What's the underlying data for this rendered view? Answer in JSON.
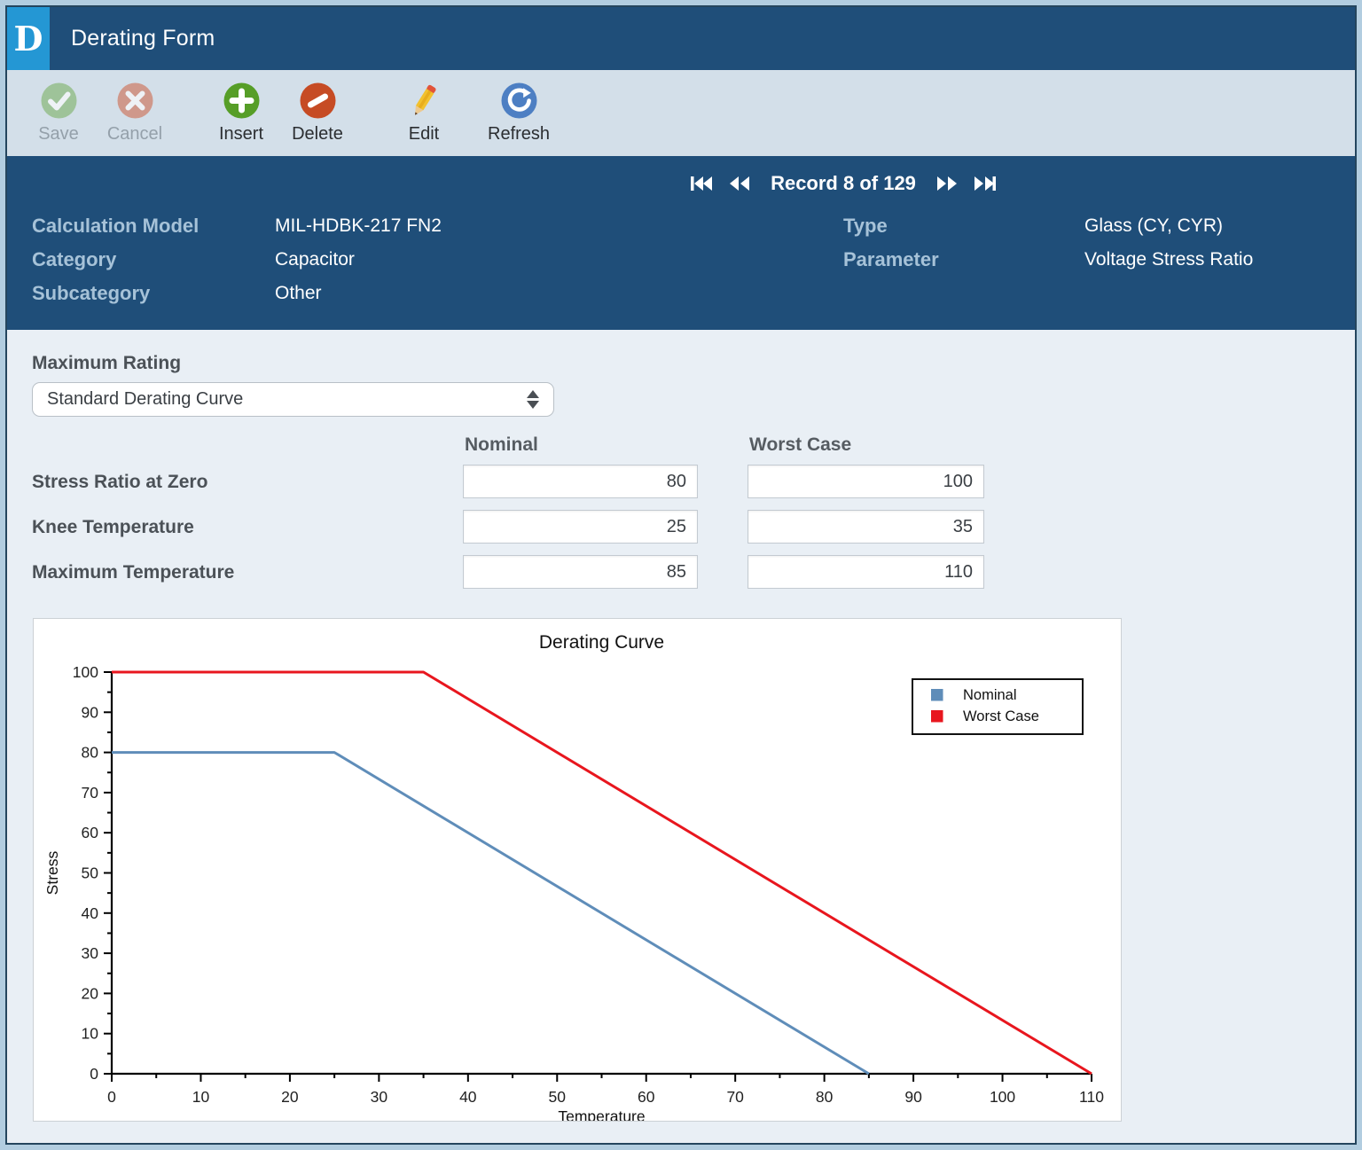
{
  "window": {
    "logo": "D",
    "title": "Derating Form"
  },
  "toolbar": {
    "buttons": [
      {
        "label": "Save",
        "icon": "save-check-icon",
        "enabled": false
      },
      {
        "label": "Cancel",
        "icon": "cancel-x-icon",
        "enabled": false
      },
      {
        "label": "Insert",
        "icon": "insert-plus-icon",
        "enabled": true
      },
      {
        "label": "Delete",
        "icon": "delete-slash-icon",
        "enabled": true
      },
      {
        "label": "Edit",
        "icon": "edit-pencil-icon",
        "enabled": true
      },
      {
        "label": "Refresh",
        "icon": "refresh-arrow-icon",
        "enabled": true
      }
    ]
  },
  "record_nav": {
    "text": "Record 8 of 129"
  },
  "info": {
    "left": [
      {
        "label": "Calculation Model",
        "value": "MIL-HDBK-217 FN2"
      },
      {
        "label": "Category",
        "value": "Capacitor"
      },
      {
        "label": "Subcategory",
        "value": "Other"
      }
    ],
    "right": [
      {
        "label": "Type",
        "value": "Glass (CY, CYR)"
      },
      {
        "label": "Parameter",
        "value": "Voltage Stress Ratio"
      }
    ]
  },
  "form": {
    "max_rating_label": "Maximum Rating",
    "dropdown_value": "Standard Derating Curve",
    "col_headers": [
      "Nominal",
      "Worst Case"
    ],
    "rows": [
      {
        "label": "Stress Ratio at Zero",
        "nominal": "80",
        "worst": "100"
      },
      {
        "label": "Knee Temperature",
        "nominal": "25",
        "worst": "35"
      },
      {
        "label": "Maximum Temperature",
        "nominal": "85",
        "worst": "110"
      }
    ]
  },
  "chart_data": {
    "type": "line",
    "title": "Derating Curve",
    "xlabel": "Temperature",
    "ylabel": "Stress",
    "xlim": [
      0,
      110
    ],
    "ylim": [
      0,
      100
    ],
    "xtick_step": 10,
    "ytick_step": 10,
    "minor_tick_step": 5,
    "grid": false,
    "legend_position": "top-right",
    "series": [
      {
        "name": "Nominal",
        "color": "#5f8db9",
        "points": [
          [
            0,
            80
          ],
          [
            25,
            80
          ],
          [
            85,
            0
          ]
        ]
      },
      {
        "name": "Worst Case",
        "color": "#e8161e",
        "points": [
          [
            0,
            100
          ],
          [
            35,
            100
          ],
          [
            110,
            0
          ]
        ]
      }
    ]
  },
  "colors": {
    "titlebar": "#1f4e79",
    "logo_bg": "#2497d4",
    "toolbar_bg": "#d3dfe9",
    "panel_bg": "#1f4e79",
    "panel_label": "#a6c2d8",
    "content_bg": "#e9eff5",
    "nominal_line": "#5f8db9",
    "worst_case_line": "#e8161e"
  }
}
